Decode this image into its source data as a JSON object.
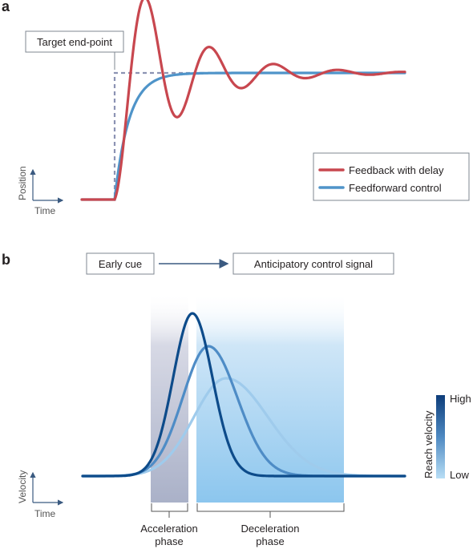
{
  "panel_a": {
    "label": "a",
    "target_label": "Target end-point",
    "legend": [
      {
        "label": "Feedback with delay",
        "color": "#c8474f"
      },
      {
        "label": "Feedforward control",
        "color": "#4f94c9"
      }
    ],
    "y_axis_label": "Position",
    "x_axis_label": "Time",
    "colors": {
      "target": "#8c93b3",
      "feedback": "#c8474f",
      "feedforward": "#4f94c9"
    }
  },
  "panel_b": {
    "label": "b",
    "cue_label": "Early cue",
    "signal_label": "Anticipatory control signal",
    "y_axis_label": "Velocity",
    "x_axis_label": "Time",
    "acceleration_label": [
      "Acceleration",
      "phase"
    ],
    "deceleration_label": [
      "Deceleration",
      "phase"
    ],
    "colorbar": {
      "title": "Reach velocity",
      "high": "High",
      "low": "Low",
      "high_color": "#0d3d7a",
      "low_color": "#b8def5"
    },
    "curve_colors": [
      "#0d4b8a",
      "#4e8cc6",
      "#9fcbec"
    ]
  }
}
